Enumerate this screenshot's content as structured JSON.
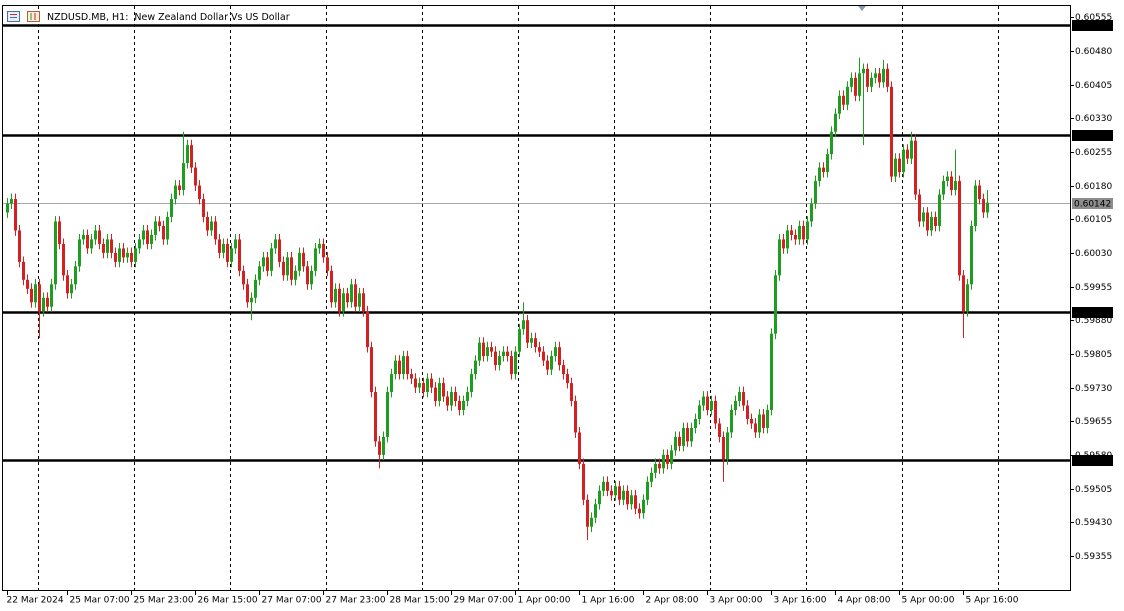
{
  "chart_data": {
    "type": "candlestick",
    "symbol": "NZDUSD.MB, H1:",
    "description": "New Zealand Dollar Vs US Dollar",
    "up_color": "#1e9e1e",
    "down_color": "#d42020",
    "ylim": [
      0.59279,
      0.6058
    ],
    "yticks": [
      0.60555,
      {
        "value": 0.6048,
        "label": "0.60480"
      },
      0.60405,
      {
        "value": 0.6033,
        "label": "0.60330"
      },
      0.60255,
      {
        "value": 0.6018,
        "label": "0.60180"
      },
      0.60105,
      {
        "value": 0.6003,
        "label": "0.60030"
      },
      0.59955,
      {
        "value": 0.5988,
        "label": "0.59880"
      },
      0.59805,
      {
        "value": 0.5973,
        "label": "0.59730"
      },
      0.59655,
      {
        "value": 0.5958,
        "label": "0.59580"
      },
      0.59505,
      {
        "value": 0.5943,
        "label": "0.59430"
      },
      0.59355
    ],
    "levels": [
      0.60537,
      0.60293,
      0.59899,
      0.59569
    ],
    "bid": 0.60142,
    "categories": [
      "22 Mar 2024",
      null,
      null,
      null,
      null,
      null,
      null,
      null,
      null,
      null,
      null,
      null,
      null,
      null,
      null,
      "25 Mar 07:00",
      null,
      null,
      null,
      null,
      null,
      null,
      null,
      null,
      null,
      null,
      null,
      null,
      null,
      null,
      null,
      "25 Mar 23:00",
      null,
      null,
      null,
      null,
      null,
      null,
      null,
      null,
      null,
      null,
      null,
      null,
      null,
      null,
      null,
      "26 Mar 15:00",
      null,
      null,
      null,
      null,
      null,
      null,
      null,
      null,
      null,
      null,
      null,
      null,
      null,
      null,
      null,
      "27 Mar 07:00",
      null,
      null,
      null,
      null,
      null,
      null,
      null,
      null,
      null,
      null,
      null,
      null,
      null,
      null,
      null,
      "27 Mar 23:00",
      null,
      null,
      null,
      null,
      null,
      null,
      null,
      null,
      null,
      null,
      null,
      null,
      null,
      null,
      null,
      "28 Mar 15:00",
      null,
      null,
      null,
      null,
      null,
      null,
      null,
      null,
      null,
      null,
      null,
      null,
      null,
      null,
      null,
      "29 Mar 07:00",
      null,
      null,
      null,
      null,
      null,
      null,
      null,
      null,
      null,
      null,
      null,
      null,
      null,
      null,
      null,
      "1 Apr 00:00",
      null,
      null,
      null,
      null,
      null,
      null,
      null,
      null,
      null,
      null,
      null,
      null,
      null,
      null,
      null,
      "1 Apr 16:00",
      null,
      null,
      null,
      null,
      null,
      null,
      null,
      null,
      null,
      null,
      null,
      null,
      null,
      null,
      null,
      "2 Apr 08:00",
      null,
      null,
      null,
      null,
      null,
      null,
      null,
      null,
      null,
      null,
      null,
      null,
      null,
      null,
      null,
      "3 Apr 00:00",
      null,
      null,
      null,
      null,
      null,
      null,
      null,
      null,
      null,
      null,
      null,
      null,
      null,
      null,
      null,
      "3 Apr 16:00",
      null,
      null,
      null,
      null,
      null,
      null,
      null,
      null,
      null,
      null,
      null,
      null,
      null,
      null,
      null,
      "4 Apr 08:00",
      null,
      null,
      null,
      null,
      null,
      null,
      null,
      null,
      null,
      null,
      null,
      null,
      null,
      null,
      null,
      "5 Apr 00:00",
      null,
      null,
      null,
      null,
      null,
      null,
      null,
      null,
      null,
      null,
      null,
      null,
      null,
      null,
      null,
      "5 Apr 16:00",
      null,
      null,
      null,
      null,
      null,
      null
    ],
    "open": [
      0.6012,
      0.6014,
      0.6015,
      0.6008,
      0.6001,
      0.5997,
      0.5995,
      0.5992,
      0.5996,
      0.599,
      0.5993,
      0.5991,
      0.5996,
      0.601,
      0.6005,
      0.5998,
      0.5994,
      0.5996,
      0.6,
      0.6006,
      0.6007,
      0.6004,
      0.6006,
      0.6008,
      0.6005,
      0.6003,
      0.6006,
      0.6003,
      0.6001,
      0.6004,
      0.6002,
      0.6003,
      0.6001,
      0.6004,
      0.6006,
      0.6008,
      0.6005,
      0.6007,
      0.601,
      0.6009,
      0.6006,
      0.6011,
      0.6015,
      0.6018,
      0.6017,
      0.6023,
      0.6027,
      0.6022,
      0.6018,
      0.6015,
      0.6011,
      0.6008,
      0.601,
      0.6006,
      0.6003,
      0.6005,
      0.6001,
      0.6004,
      0.6006,
      0.5999,
      0.5996,
      0.5992,
      0.5993,
      0.5997,
      0.6,
      0.6002,
      0.5999,
      0.6004,
      0.6006,
      0.6001,
      0.5998,
      0.6002,
      0.5997,
      0.5999,
      0.6003,
      0.6,
      0.5996,
      0.5999,
      0.6004,
      0.6005,
      0.6002,
      0.5999,
      0.5992,
      0.5995,
      0.599,
      0.5994,
      0.5992,
      0.5996,
      0.5991,
      0.5994,
      0.599,
      0.5982,
      0.5972,
      0.5961,
      0.5958,
      0.5962,
      0.5972,
      0.5976,
      0.5979,
      0.5976,
      0.598,
      0.5976,
      0.5975,
      0.5973,
      0.5974,
      0.5972,
      0.5975,
      0.5973,
      0.597,
      0.5974,
      0.5971,
      0.5969,
      0.5972,
      0.597,
      0.5968,
      0.597,
      0.5972,
      0.5976,
      0.5979,
      0.5983,
      0.598,
      0.5982,
      0.5981,
      0.5978,
      0.598,
      0.5981,
      0.598,
      0.5976,
      0.5981,
      0.5986,
      0.5988,
      0.5983,
      0.5984,
      0.5982,
      0.5981,
      0.5979,
      0.5977,
      0.598,
      0.5982,
      0.5978,
      0.5976,
      0.5974,
      0.597,
      0.5963,
      0.5956,
      0.5948,
      0.5942,
      0.5944,
      0.5947,
      0.595,
      0.5952,
      0.595,
      0.5949,
      0.5951,
      0.5948,
      0.595,
      0.5947,
      0.5949,
      0.5946,
      0.5945,
      0.5948,
      0.5952,
      0.5954,
      0.5956,
      0.5955,
      0.5958,
      0.5956,
      0.5959,
      0.5962,
      0.596,
      0.5964,
      0.5961,
      0.5964,
      0.5966,
      0.5969,
      0.5971,
      0.5968,
      0.597,
      0.5965,
      0.5962,
      0.5957,
      0.5963,
      0.5968,
      0.597,
      0.5972,
      0.5969,
      0.5966,
      0.5965,
      0.5963,
      0.5967,
      0.5964,
      0.5968,
      0.5985,
      0.5998,
      0.6006,
      0.6004,
      0.6008,
      0.6007,
      0.6006,
      0.6009,
      0.6006,
      0.601,
      0.6014,
      0.6019,
      0.6022,
      0.6021,
      0.6025,
      0.603,
      0.6034,
      0.6038,
      0.6036,
      0.604,
      0.6042,
      0.6038,
      0.6043,
      0.6044,
      0.604,
      0.6042,
      0.6043,
      0.6041,
      0.6044,
      0.604,
      0.602,
      0.6024,
      0.6021,
      0.6026,
      0.6024,
      0.6028,
      0.6016,
      0.601,
      0.6012,
      0.6008,
      0.6011,
      0.6009,
      0.6016,
      0.6019,
      0.602,
      0.6017,
      0.6019,
      0.5998,
      0.599,
      0.5996,
      0.6009,
      0.6018,
      0.6015,
      0.6012
    ],
    "high": [
      0.60152,
      0.60162,
      0.60162,
      0.60092,
      0.60022,
      0.59982,
      0.59962,
      0.59972,
      0.59972,
      0.59942,
      0.59942,
      0.59972,
      0.60112,
      0.60112,
      0.60062,
      0.59992,
      0.59972,
      0.60012,
      0.60072,
      0.60082,
      0.60082,
      0.60072,
      0.60092,
      0.60092,
      0.60062,
      0.60072,
      0.60072,
      0.60042,
      0.60052,
      0.60052,
      0.60042,
      0.60042,
      0.60052,
      0.60072,
      0.60092,
      0.60092,
      0.60082,
      0.60112,
      0.60112,
      0.60102,
      0.60122,
      0.60162,
      0.60192,
      0.60192,
      0.603,
      0.60282,
      0.60282,
      0.60232,
      0.60192,
      0.60162,
      0.60122,
      0.60112,
      0.60112,
      0.60072,
      0.60062,
      0.60062,
      0.60052,
      0.60072,
      0.60072,
      0.60002,
      0.59972,
      0.59942,
      0.59982,
      0.60012,
      0.60032,
      0.60032,
      0.60052,
      0.60072,
      0.60072,
      0.60022,
      0.60032,
      0.60032,
      0.60002,
      0.60042,
      0.60042,
      0.60012,
      0.60002,
      0.60052,
      0.60062,
      0.60062,
      0.60032,
      0.60002,
      0.59962,
      0.59962,
      0.59952,
      0.59952,
      0.59972,
      0.59972,
      0.59952,
      0.59952,
      0.59912,
      0.59832,
      0.59732,
      0.59622,
      0.59632,
      0.59732,
      0.59772,
      0.59802,
      0.59802,
      0.59812,
      0.59812,
      0.59772,
      0.59762,
      0.59752,
      0.59752,
      0.59762,
      0.59762,
      0.59742,
      0.59752,
      0.59752,
      0.59722,
      0.59732,
      0.59732,
      0.59712,
      0.59712,
      0.59732,
      0.59772,
      0.59802,
      0.59842,
      0.59842,
      0.59832,
      0.59832,
      0.59822,
      0.59812,
      0.59822,
      0.59822,
      0.59812,
      0.59822,
      0.59872,
      0.5992,
      0.59892,
      0.59852,
      0.59852,
      0.59832,
      0.59822,
      0.59802,
      0.59812,
      0.59832,
      0.59832,
      0.59792,
      0.59772,
      0.59752,
      0.59712,
      0.59642,
      0.59572,
      0.59492,
      0.59452,
      0.59482,
      0.59512,
      0.59532,
      0.59532,
      0.59512,
      0.59522,
      0.59522,
      0.59512,
      0.59512,
      0.59502,
      0.59502,
      0.59472,
      0.59492,
      0.59532,
      0.59552,
      0.59572,
      0.59572,
      0.59592,
      0.59592,
      0.59602,
      0.59632,
      0.59632,
      0.59652,
      0.59652,
      0.59652,
      0.59672,
      0.59702,
      0.59722,
      0.59722,
      0.59712,
      0.59712,
      0.59662,
      0.59632,
      0.59642,
      0.59692,
      0.59712,
      0.59732,
      0.59732,
      0.59702,
      0.59672,
      0.59662,
      0.59682,
      0.59682,
      0.59692,
      0.59862,
      0.59992,
      0.60072,
      0.60072,
      0.60092,
      0.60092,
      0.60082,
      0.60102,
      0.60102,
      0.60112,
      0.60152,
      0.60202,
      0.60232,
      0.60232,
      0.60262,
      0.60312,
      0.60352,
      0.60392,
      0.60392,
      0.60412,
      0.60432,
      0.60432,
      0.60465,
      0.60452,
      0.60452,
      0.60432,
      0.60442,
      0.60442,
      0.6046,
      0.60452,
      0.60412,
      0.60252,
      0.60252,
      0.60272,
      0.60272,
      0.603,
      0.60292,
      0.60172,
      0.60132,
      0.60132,
      0.60122,
      0.60122,
      0.60172,
      0.60202,
      0.60212,
      0.60212,
      0.6026,
      0.60202,
      0.59992,
      0.59972,
      0.60102,
      0.60192,
      0.60192,
      0.60162,
      0.6017
    ],
    "low": [
      0.60108,
      0.60128,
      0.60068,
      0.59998,
      0.59958,
      0.59938,
      0.59908,
      0.59908,
      0.5984,
      0.59888,
      0.59898,
      0.59898,
      0.59948,
      0.60038,
      0.59968,
      0.59928,
      0.59928,
      0.59948,
      0.59988,
      0.60048,
      0.60028,
      0.60028,
      0.60048,
      0.60038,
      0.60018,
      0.60018,
      0.60018,
      0.59998,
      0.59998,
      0.60008,
      0.60008,
      0.59998,
      0.59998,
      0.60028,
      0.60048,
      0.60038,
      0.60038,
      0.60058,
      0.60078,
      0.60048,
      0.60048,
      0.60098,
      0.60138,
      0.60158,
      0.60158,
      0.60218,
      0.60208,
      0.60168,
      0.60138,
      0.60098,
      0.60068,
      0.60068,
      0.60048,
      0.60018,
      0.60018,
      0.59998,
      0.59998,
      0.60028,
      0.59978,
      0.59948,
      0.59908,
      0.5988,
      0.59918,
      0.59958,
      0.59988,
      0.59978,
      0.59978,
      0.60028,
      0.59998,
      0.59968,
      0.59968,
      0.59958,
      0.59958,
      0.59978,
      0.59988,
      0.59948,
      0.59948,
      0.59978,
      0.60028,
      0.60008,
      0.59978,
      0.59908,
      0.59908,
      0.59888,
      0.59888,
      0.59908,
      0.59908,
      0.59898,
      0.59898,
      0.59888,
      0.59808,
      0.59708,
      0.59598,
      0.5955,
      0.59568,
      0.59608,
      0.59708,
      0.59748,
      0.59748,
      0.59748,
      0.59748,
      0.59738,
      0.59718,
      0.59718,
      0.59708,
      0.59708,
      0.59718,
      0.59688,
      0.59688,
      0.59698,
      0.59678,
      0.59678,
      0.59688,
      0.59668,
      0.59668,
      0.59688,
      0.59708,
      0.59748,
      0.59778,
      0.59788,
      0.59788,
      0.59798,
      0.59768,
      0.59768,
      0.59788,
      0.59788,
      0.59748,
      0.59748,
      0.59798,
      0.59848,
      0.59818,
      0.59818,
      0.59808,
      0.59798,
      0.59778,
      0.59758,
      0.59758,
      0.59788,
      0.59768,
      0.59748,
      0.59728,
      0.59688,
      0.59618,
      0.59548,
      0.59468,
      0.5939,
      0.59408,
      0.59428,
      0.59458,
      0.59488,
      0.59488,
      0.59478,
      0.59478,
      0.59468,
      0.59468,
      0.59458,
      0.59458,
      0.59448,
      0.59438,
      0.59438,
      0.59468,
      0.59508,
      0.59528,
      0.59538,
      0.59538,
      0.59548,
      0.59548,
      0.59578,
      0.59588,
      0.59588,
      0.59598,
      0.59598,
      0.59628,
      0.59648,
      0.59678,
      0.59668,
      0.59668,
      0.59638,
      0.59608,
      0.5952,
      0.59558,
      0.59618,
      0.59668,
      0.59688,
      0.59678,
      0.59648,
      0.59638,
      0.59618,
      0.59618,
      0.59628,
      0.59628,
      0.59668,
      0.59838,
      0.59968,
      0.60028,
      0.60028,
      0.60058,
      0.60048,
      0.60048,
      0.60048,
      0.60048,
      0.60088,
      0.60128,
      0.60178,
      0.60198,
      0.60198,
      0.60238,
      0.60288,
      0.60328,
      0.60348,
      0.60348,
      0.60388,
      0.60368,
      0.60368,
      0.6027,
      0.60388,
      0.60388,
      0.60408,
      0.60398,
      0.60398,
      0.60388,
      0.60188,
      0.60188,
      0.60198,
      0.60198,
      0.60228,
      0.60228,
      0.60148,
      0.60088,
      0.60088,
      0.60068,
      0.60068,
      0.60078,
      0.60078,
      0.60148,
      0.60178,
      0.60158,
      0.60158,
      0.59968,
      0.5984,
      0.59888,
      0.59948,
      0.60078,
      0.60138,
      0.60108,
      0.60108
    ],
    "close": [
      0.6014,
      0.6015,
      0.6008,
      0.6001,
      0.5997,
      0.5995,
      0.5992,
      0.5996,
      0.599,
      0.5993,
      0.5991,
      0.5996,
      0.601,
      0.6005,
      0.5998,
      0.5994,
      0.5996,
      0.6,
      0.6006,
      0.6007,
      0.6004,
      0.6006,
      0.6008,
      0.6005,
      0.6003,
      0.6006,
      0.6003,
      0.6001,
      0.6004,
      0.6002,
      0.6003,
      0.6001,
      0.6004,
      0.6006,
      0.6008,
      0.6005,
      0.6007,
      0.601,
      0.6009,
      0.6006,
      0.6011,
      0.6015,
      0.6018,
      0.6017,
      0.6023,
      0.6027,
      0.6022,
      0.6018,
      0.6015,
      0.6011,
      0.6008,
      0.601,
      0.6006,
      0.6003,
      0.6005,
      0.6001,
      0.6004,
      0.6006,
      0.5999,
      0.5996,
      0.5992,
      0.5993,
      0.5997,
      0.6,
      0.6002,
      0.5999,
      0.6004,
      0.6006,
      0.6001,
      0.5998,
      0.6002,
      0.5997,
      0.5999,
      0.6003,
      0.6,
      0.5996,
      0.5999,
      0.6004,
      0.6005,
      0.6002,
      0.5999,
      0.5992,
      0.5995,
      0.599,
      0.5994,
      0.5992,
      0.5996,
      0.5991,
      0.5994,
      0.599,
      0.5982,
      0.5972,
      0.5961,
      0.5958,
      0.5962,
      0.5972,
      0.5976,
      0.5979,
      0.5976,
      0.598,
      0.5976,
      0.5975,
      0.5973,
      0.5974,
      0.5972,
      0.5975,
      0.5973,
      0.597,
      0.5974,
      0.5971,
      0.5969,
      0.5972,
      0.597,
      0.5968,
      0.597,
      0.5972,
      0.5976,
      0.5979,
      0.5983,
      0.598,
      0.5982,
      0.5981,
      0.5978,
      0.598,
      0.5981,
      0.598,
      0.5976,
      0.5981,
      0.5986,
      0.5988,
      0.5983,
      0.5984,
      0.5982,
      0.5981,
      0.5979,
      0.5977,
      0.598,
      0.5982,
      0.5978,
      0.5976,
      0.5974,
      0.597,
      0.5963,
      0.5956,
      0.5948,
      0.5942,
      0.5944,
      0.5947,
      0.595,
      0.5952,
      0.595,
      0.5949,
      0.5951,
      0.5948,
      0.595,
      0.5947,
      0.5949,
      0.5946,
      0.5945,
      0.5948,
      0.5952,
      0.5954,
      0.5956,
      0.5955,
      0.5958,
      0.5956,
      0.5959,
      0.5962,
      0.596,
      0.5964,
      0.5961,
      0.5964,
      0.5966,
      0.5969,
      0.5971,
      0.5968,
      0.597,
      0.5965,
      0.5962,
      0.5957,
      0.5963,
      0.5968,
      0.597,
      0.5972,
      0.5969,
      0.5966,
      0.5965,
      0.5963,
      0.5967,
      0.5964,
      0.5968,
      0.5985,
      0.5998,
      0.6006,
      0.6004,
      0.6008,
      0.6007,
      0.6006,
      0.6009,
      0.6006,
      0.601,
      0.6014,
      0.6019,
      0.6022,
      0.6021,
      0.6025,
      0.603,
      0.6034,
      0.6038,
      0.6036,
      0.604,
      0.6042,
      0.6038,
      0.6043,
      0.6044,
      0.604,
      0.6042,
      0.6043,
      0.6041,
      0.6044,
      0.604,
      0.602,
      0.6024,
      0.6021,
      0.6026,
      0.6024,
      0.6028,
      0.6016,
      0.601,
      0.6012,
      0.6008,
      0.6011,
      0.6009,
      0.6016,
      0.6019,
      0.602,
      0.6017,
      0.6019,
      0.5998,
      0.599,
      0.5996,
      0.6009,
      0.6018,
      0.6015,
      0.6012,
      0.60142
    ]
  }
}
